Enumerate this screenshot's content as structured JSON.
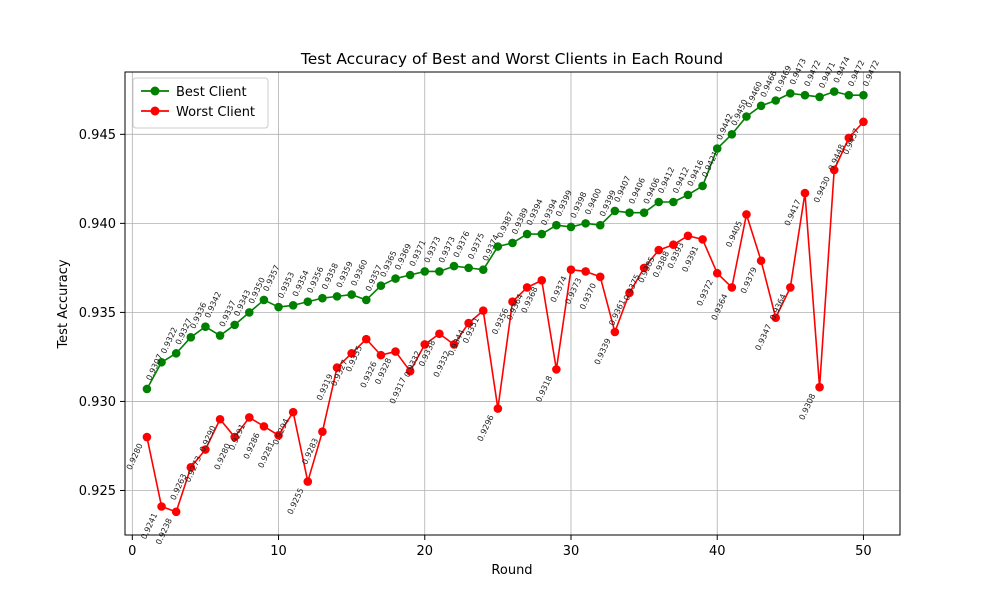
{
  "chart_data": {
    "type": "line",
    "title": "Test Accuracy of Best and Worst Clients in Each Round",
    "xlabel": "Round",
    "ylabel": "Test Accuracy",
    "xlim": [
      -0.5,
      52.5
    ],
    "ylim": [
      0.9225,
      0.9485
    ],
    "xticks": [
      0,
      10,
      20,
      30,
      40,
      50
    ],
    "yticks": [
      0.925,
      0.93,
      0.935,
      0.94,
      0.945
    ],
    "ytick_labels": [
      "0.925",
      "0.930",
      "0.935",
      "0.940",
      "0.945"
    ],
    "grid": true,
    "legend_position": "top-left",
    "x": [
      1,
      2,
      3,
      4,
      5,
      6,
      7,
      8,
      9,
      10,
      11,
      12,
      13,
      14,
      15,
      16,
      17,
      18,
      19,
      20,
      21,
      22,
      23,
      24,
      25,
      26,
      27,
      28,
      29,
      30,
      31,
      32,
      33,
      34,
      35,
      36,
      37,
      38,
      39,
      40,
      41,
      42,
      43,
      44,
      45,
      46,
      47,
      48,
      49,
      50
    ],
    "series": [
      {
        "name": "Best Client",
        "color": "#008000",
        "label_position": "above",
        "values": [
          0.9307,
          0.9322,
          0.9327,
          0.9336,
          0.9342,
          0.9337,
          0.9343,
          0.935,
          0.9357,
          0.9353,
          0.9354,
          0.9356,
          0.9358,
          0.9359,
          0.936,
          0.9357,
          0.9365,
          0.9369,
          0.9371,
          0.9373,
          0.9373,
          0.9376,
          0.9375,
          0.9374,
          0.9387,
          0.9389,
          0.9394,
          0.9394,
          0.9399,
          0.9398,
          0.94,
          0.9399,
          0.9407,
          0.9406,
          0.9406,
          0.9412,
          0.9412,
          0.9416,
          0.9421,
          0.9442,
          0.945,
          0.946,
          0.9466,
          0.9469,
          0.9473,
          0.9472,
          0.9471,
          0.9474,
          0.9472,
          0.9472
        ],
        "labels": [
          "0.9307",
          "0.9322",
          "0.9327",
          "0.9336",
          "0.9342",
          "0.9337",
          "0.9343",
          "0.9350",
          "0.9357",
          "0.9353",
          "0.9354",
          "0.9356",
          "0.9358",
          "0.9359",
          "0.9360",
          "0.9357",
          "0.9365",
          "0.9369",
          "0.9371",
          "0.9373",
          "0.9373",
          "0.9376",
          "0.9375",
          "0.9374",
          "0.9387",
          "0.9389",
          "0.9394",
          "0.9394",
          "0.9399",
          "0.9398",
          "0.9400",
          "0.9399",
          "0.9407",
          "0.9406",
          "0.9406",
          "0.9412",
          "0.9412",
          "0.9416",
          "0.9421",
          "0.9442",
          "0.9450",
          "0.9460",
          "0.9466",
          "0.9469",
          "0.9473",
          "0.9472",
          "0.9471",
          "0.9474",
          "0.9472",
          "0.9472"
        ]
      },
      {
        "name": "Worst Client",
        "color": "#ff0000",
        "label_position": "below",
        "values": [
          0.928,
          0.9241,
          0.9238,
          0.9263,
          0.9273,
          0.929,
          0.928,
          0.9291,
          0.9286,
          0.9281,
          0.9294,
          0.9255,
          0.9283,
          0.9319,
          0.9327,
          0.9335,
          0.9326,
          0.9328,
          0.9317,
          0.9332,
          0.9338,
          0.9332,
          0.9344,
          0.9351,
          0.9296,
          0.9356,
          0.9364,
          0.9368,
          0.9318,
          0.9374,
          0.9373,
          0.937,
          0.9339,
          0.9361,
          0.9375,
          0.9385,
          0.9388,
          0.9393,
          0.9391,
          0.9372,
          0.9364,
          0.9405,
          0.9379,
          0.9347,
          0.9364,
          0.9417,
          0.9308,
          0.943,
          0.9448,
          0.9457
        ],
        "labels": [
          "0.9280",
          "0.9241",
          "0.9238",
          "0.9263",
          "0.9273",
          "0.9290",
          "0.9280",
          "0.9291",
          "0.9286",
          "0.9281",
          "0.9294",
          "0.9255",
          "0.9283",
          "0.9319",
          "0.9327",
          "0.9335",
          "0.9326",
          "0.9328",
          "0.9317",
          "0.9332",
          "0.9338",
          "0.9332",
          "0.9344",
          "0.9351",
          "0.9296",
          "0.9356",
          "0.9364",
          "0.9368",
          "0.9318",
          "0.9374",
          "0.9373",
          "0.9370",
          "0.9339",
          "0.9361",
          "0.9375",
          "0.9385",
          "0.9388",
          "0.9393",
          "0.9391",
          "0.9372",
          "0.9364",
          "0.9405",
          "0.9379",
          "0.9347",
          "0.9364",
          "0.9417",
          "0.9308",
          "0.9430",
          "0.9448",
          "0.9457"
        ]
      }
    ]
  }
}
